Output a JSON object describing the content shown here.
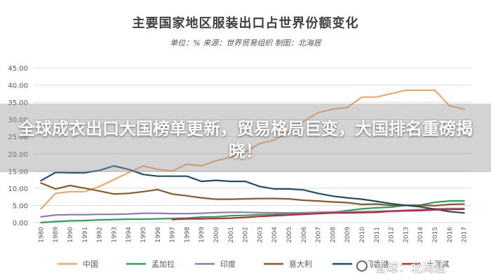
{
  "header": {
    "title": "主要国家地区服装出口占世界份额变化",
    "subtitle": "单位：% 来源：世界贸易组织 制图：北海居"
  },
  "banner": {
    "text": "全球成衣出口大国榜单更新，贸易格局巨变，大国排名重磅揭晓！"
  },
  "watermark": {
    "text": "雪球：北海居",
    "icon": "snowball-icon"
  },
  "chart_data": {
    "type": "line",
    "title": "主要国家地区服装出口占世界份额变化",
    "subtitle": "单位：% 来源：世界贸易组织 制图：北海居",
    "xlabel": "",
    "ylabel": "",
    "x": [
      "1980",
      "1989",
      "1990",
      "1991",
      "1992",
      "1993",
      "1994",
      "1995",
      "1996",
      "1997",
      "1998",
      "1999",
      "2000",
      "2001",
      "2002",
      "2003",
      "2004",
      "2005",
      "2006",
      "2007",
      "2008",
      "2009",
      "2010",
      "2011",
      "2012",
      "2013",
      "2014",
      "2015",
      "2016",
      "2017"
    ],
    "ylim": [
      0,
      45
    ],
    "yticks": [
      "0.00",
      "5.00",
      "10.00",
      "15.00",
      "20.00",
      "25.00",
      "30.00",
      "35.00",
      "40.00",
      "45.00"
    ],
    "grid": true,
    "legend_position": "bottom",
    "series": [
      {
        "name": "中国",
        "color": "#f0a86a",
        "values": [
          4.0,
          8.5,
          9.0,
          9.0,
          10.5,
          12.5,
          14.5,
          16.5,
          15.5,
          15.0,
          17.0,
          16.5,
          18.0,
          19.0,
          20.5,
          23.0,
          24.0,
          26.5,
          29.5,
          32.0,
          33.0,
          33.5,
          36.5,
          36.5,
          37.5,
          38.5,
          38.5,
          38.5,
          34.0,
          33.0
        ]
      },
      {
        "name": "孟加拉",
        "color": "#2f9e63",
        "values": [
          0.0,
          0.3,
          0.5,
          0.6,
          0.8,
          0.9,
          1.0,
          1.0,
          1.1,
          1.2,
          1.3,
          1.6,
          1.7,
          2.0,
          2.1,
          2.3,
          2.4,
          2.6,
          2.7,
          2.8,
          3.0,
          3.5,
          4.0,
          4.3,
          4.5,
          5.0,
          5.1,
          5.9,
          6.3,
          6.3
        ]
      },
      {
        "name": "印度",
        "color": "#8a7bb5",
        "values": [
          1.7,
          2.2,
          2.3,
          2.3,
          2.4,
          2.4,
          2.5,
          2.7,
          2.7,
          2.6,
          2.6,
          2.7,
          2.9,
          3.0,
          3.0,
          2.9,
          2.9,
          2.8,
          2.9,
          3.0,
          3.1,
          3.1,
          3.2,
          3.3,
          3.4,
          3.6,
          3.8,
          4.0,
          4.1,
          4.1
        ]
      },
      {
        "name": "意大利",
        "color": "#8a5a2a",
        "values": [
          11.5,
          9.8,
          10.8,
          10.0,
          9.2,
          8.3,
          8.5,
          9.0,
          9.6,
          8.3,
          7.8,
          7.2,
          6.8,
          6.8,
          6.9,
          7.0,
          7.0,
          6.9,
          6.5,
          6.3,
          6.0,
          5.8,
          5.3,
          5.4,
          5.0,
          5.0,
          5.0,
          4.9,
          5.3,
          5.4
        ]
      },
      {
        "name": "中国香港",
        "color": "#1f4e6b",
        "values": [
          12.2,
          14.6,
          14.5,
          14.5,
          15.2,
          16.5,
          15.5,
          14.0,
          13.5,
          13.5,
          13.5,
          12.0,
          12.3,
          12.0,
          12.0,
          10.5,
          9.8,
          9.8,
          9.5,
          8.5,
          7.7,
          7.2,
          6.8,
          6.2,
          5.5,
          5.0,
          4.6,
          3.9,
          3.2,
          2.8
        ]
      },
      {
        "name": "土耳其",
        "color": "#c1272d",
        "values": [
          null,
          null,
          null,
          null,
          null,
          null,
          null,
          null,
          null,
          0.9,
          1.1,
          1.1,
          1.2,
          1.3,
          1.5,
          1.8,
          2.0,
          2.2,
          2.4,
          2.6,
          2.8,
          2.8,
          2.9,
          3.0,
          3.3,
          3.4,
          3.5,
          3.7,
          3.8,
          3.9
        ]
      }
    ]
  }
}
